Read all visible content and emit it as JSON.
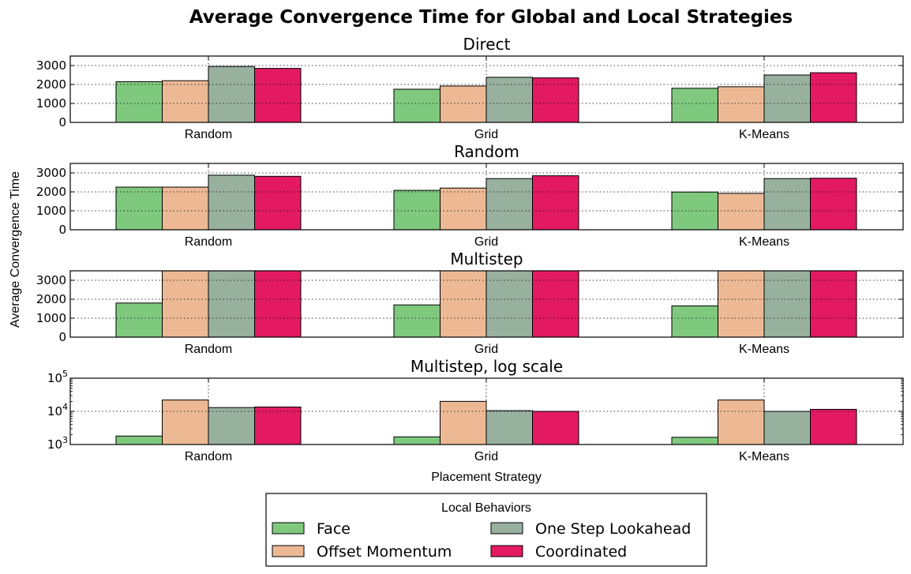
{
  "chart_data": {
    "type": "bar",
    "title": "Average Convergence Time for Global and Local Strategies",
    "xlabel": "Placement Strategy",
    "ylabel": "Average Convergence Time",
    "categories": [
      "Random",
      "Grid",
      "K-Means"
    ],
    "legend": {
      "title": "Local Behaviors",
      "placement": "bottom-center",
      "columns": 2,
      "entries": [
        "Face",
        "Offset Momentum",
        "One Step Lookahead",
        "Coordinated"
      ]
    },
    "series_colors": {
      "Face": "#7fc97f",
      "Offset Momentum": "#ecb994",
      "One Step Lookahead": "#98b19f",
      "Coordinated": "#e31a62"
    },
    "grid": true,
    "panels": [
      {
        "title": "Direct",
        "scale": "linear",
        "ylim": [
          0,
          3500
        ],
        "yticks": [
          "0",
          "1000",
          "2000",
          "3000"
        ],
        "series": [
          {
            "name": "Face",
            "values": [
              2150,
              1750,
              1800
            ]
          },
          {
            "name": "Offset Momentum",
            "values": [
              2200,
              1920,
              1880
            ]
          },
          {
            "name": "One Step Lookahead",
            "values": [
              2950,
              2380,
              2500
            ]
          },
          {
            "name": "Coordinated",
            "values": [
              2850,
              2350,
              2620
            ]
          }
        ]
      },
      {
        "title": "Random",
        "scale": "linear",
        "ylim": [
          0,
          3500
        ],
        "yticks": [
          "0",
          "1000",
          "2000",
          "3000"
        ],
        "series": [
          {
            "name": "Face",
            "values": [
              2250,
              2080,
              1990
            ]
          },
          {
            "name": "Offset Momentum",
            "values": [
              2250,
              2200,
              1920
            ]
          },
          {
            "name": "One Step Lookahead",
            "values": [
              2880,
              2700,
              2700
            ]
          },
          {
            "name": "Coordinated",
            "values": [
              2820,
              2850,
              2720
            ]
          }
        ]
      },
      {
        "title": "Multistep",
        "scale": "linear",
        "ylim": [
          0,
          3500
        ],
        "yticks": [
          "0",
          "1000",
          "2000",
          "3000"
        ],
        "series": [
          {
            "name": "Face",
            "values": [
              1800,
              1700,
              1650
            ]
          },
          {
            "name": "Offset Momentum",
            "values": [
              22000,
              20000,
              22000
            ]
          },
          {
            "name": "One Step Lookahead",
            "values": [
              13000,
              10500,
              10000
            ]
          },
          {
            "name": "Coordinated",
            "values": [
              13500,
              10000,
              11500
            ]
          }
        ]
      },
      {
        "title": "Multistep, log scale",
        "scale": "log",
        "ylim": [
          1000,
          100000
        ],
        "yticks": [
          "10^3",
          "10^4",
          "10^5"
        ],
        "series": [
          {
            "name": "Face",
            "values": [
              1800,
              1700,
              1650
            ]
          },
          {
            "name": "Offset Momentum",
            "values": [
              22000,
              20000,
              22000
            ]
          },
          {
            "name": "One Step Lookahead",
            "values": [
              13000,
              10500,
              10000
            ]
          },
          {
            "name": "Coordinated",
            "values": [
              13500,
              10000,
              11500
            ]
          }
        ]
      }
    ]
  }
}
